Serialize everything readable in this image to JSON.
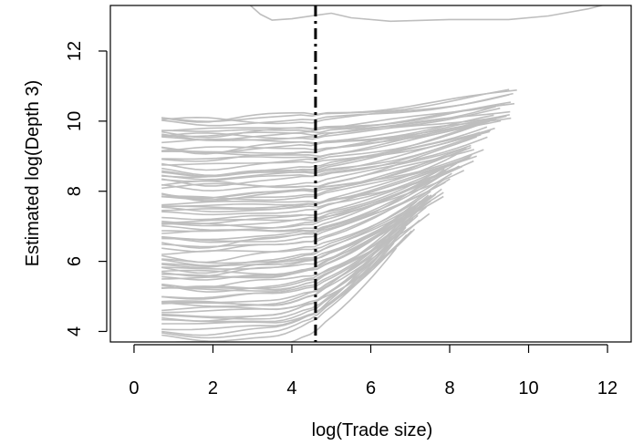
{
  "chart_data": {
    "type": "line",
    "title": "",
    "xlabel": "log(Trade size)",
    "ylabel": "Estimated log(Depth 3)",
    "xlim": [
      -0.6,
      12.6
    ],
    "ylim": [
      3.7,
      13.3
    ],
    "x_ticks": [
      0,
      2,
      4,
      6,
      8,
      10,
      12
    ],
    "y_ticks": [
      4,
      6,
      8,
      10,
      12
    ],
    "grid": false,
    "legend": "none",
    "line_color": "#bebebe",
    "reference_line": {
      "x": 4.6,
      "style": "dot-dash",
      "color": "#000000"
    },
    "series_count": 92,
    "x_start": 0.7,
    "outlier_curve": {
      "x": [
        2.9,
        3.2,
        3.5,
        4.0,
        4.6,
        5.0,
        5.5,
        6.5,
        8.0,
        9.5,
        10.5,
        11.5,
        12.2
      ],
      "y": [
        13.35,
        13.05,
        12.88,
        12.92,
        13.02,
        13.08,
        12.95,
        12.85,
        12.9,
        12.9,
        13.0,
        13.2,
        13.4
      ]
    },
    "series_summary": {
      "start_y_range": [
        3.7,
        10.1
      ],
      "end_x_range": [
        6.5,
        10.3
      ],
      "end_y_range": [
        6.5,
        11.4
      ]
    }
  }
}
